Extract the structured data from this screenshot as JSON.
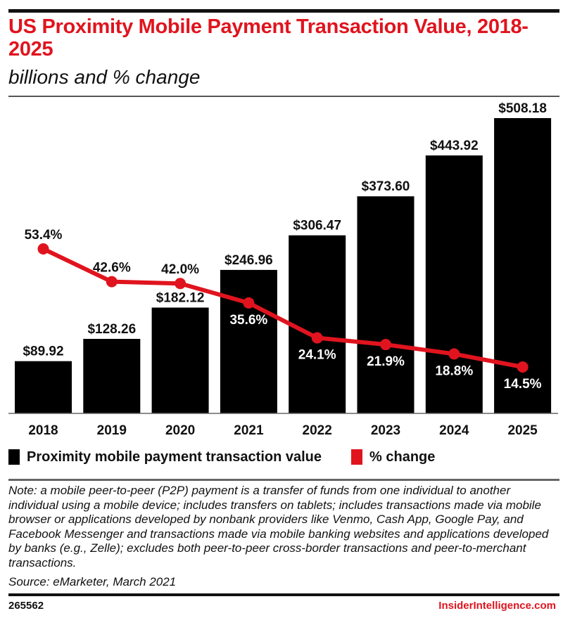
{
  "header": {
    "title": "US Proximity Mobile Payment Transaction Value, 2018-2025",
    "subtitle": "billions and % change"
  },
  "chart_data": {
    "type": "bar",
    "title": "US Proximity Mobile Payment Transaction Value, 2018-2025",
    "subtitle": "billions and % change",
    "xlabel": "",
    "ylabel": "",
    "categories": [
      "2018",
      "2019",
      "2020",
      "2021",
      "2022",
      "2023",
      "2024",
      "2025"
    ],
    "series": [
      {
        "name": "Proximity mobile payment transaction value",
        "type": "bar",
        "color": "#000000",
        "values": [
          89.92,
          128.26,
          182.12,
          246.96,
          306.47,
          373.6,
          443.92,
          508.18
        ],
        "labels": [
          "$89.92",
          "$128.26",
          "$182.12",
          "$246.96",
          "$306.47",
          "$373.60",
          "$443.92",
          "$508.18"
        ]
      },
      {
        "name": "% change",
        "type": "line",
        "color": "#e0141e",
        "values": [
          53.4,
          42.6,
          42.0,
          35.6,
          24.1,
          21.9,
          18.8,
          14.5
        ],
        "labels": [
          "53.4%",
          "42.6%",
          "42.0%",
          "35.6%",
          "24.1%",
          "21.9%",
          "18.8%",
          "14.5%"
        ]
      }
    ],
    "ylim": [
      0,
      508.18
    ],
    "grid": false,
    "legend": "bottom-left"
  },
  "legend": {
    "items": [
      {
        "label": "Proximity mobile payment transaction value",
        "color": "#000000"
      },
      {
        "label": "% change",
        "color": "#e0141e"
      }
    ]
  },
  "footer": {
    "note": "Note: a mobile peer-to-peer (P2P) payment is a transfer of funds from one individual to another individual using a mobile device; includes transfers on tablets; includes transactions made via mobile browser or applications developed by nonbank providers like Venmo, Cash App, Google Pay, and Facebook Messenger and transactions made via mobile banking websites and applications developed by banks (e.g., Zelle); excludes both peer-to-peer cross-border transactions and peer-to-merchant transactions.",
    "source": "Source: eMarketer, March 2021",
    "chart_id": "265562",
    "brand": "InsiderIntelligence.com"
  }
}
